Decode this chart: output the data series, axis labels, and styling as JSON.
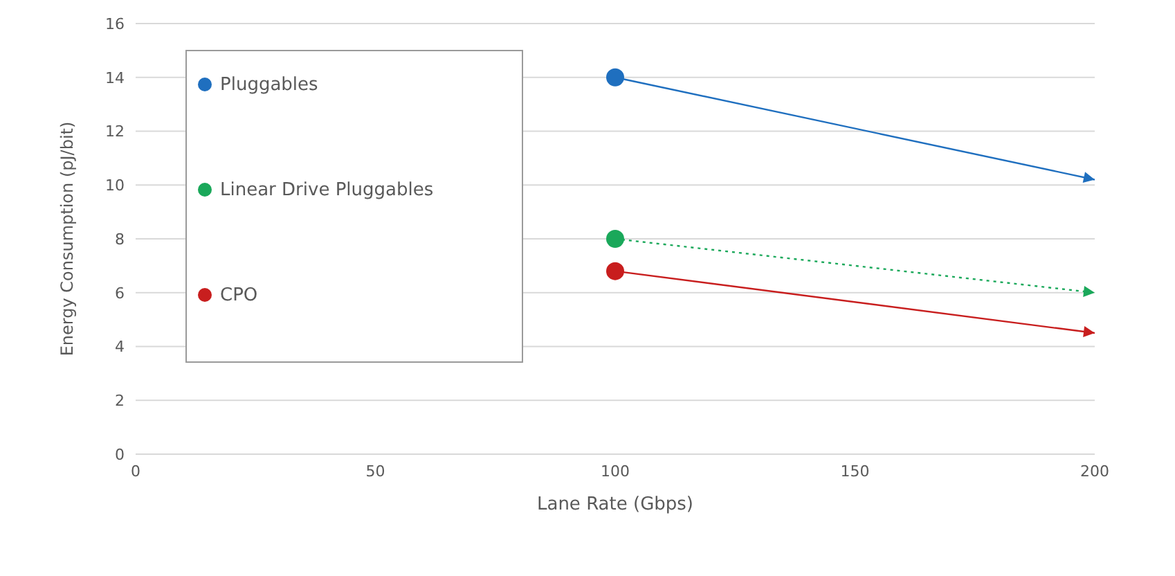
{
  "chart_data": {
    "type": "line",
    "xlabel": "Lane Rate (Gbps)",
    "ylabel": "Energy Consumption (pJ/bit)",
    "x": [
      100,
      200
    ],
    "series": [
      {
        "name": "Pluggables",
        "color": "#1f6fbf",
        "values": [
          14.0,
          10.2
        ],
        "line_style": "solid"
      },
      {
        "name": "Linear Drive Pluggables",
        "color": "#1aa85a",
        "values": [
          8.0,
          6.0
        ],
        "line_style": "dotted"
      },
      {
        "name": "CPO",
        "color": "#c81e1e",
        "values": [
          6.8,
          4.5
        ],
        "line_style": "solid"
      }
    ],
    "xlim": [
      0,
      200
    ],
    "xticks": [
      0,
      50,
      100,
      150,
      200
    ],
    "ylim": [
      0,
      16
    ],
    "yticks": [
      0,
      2,
      4,
      6,
      8,
      10,
      12,
      14,
      16
    ],
    "grid": "y",
    "legend": "top left",
    "marker": "circle"
  }
}
